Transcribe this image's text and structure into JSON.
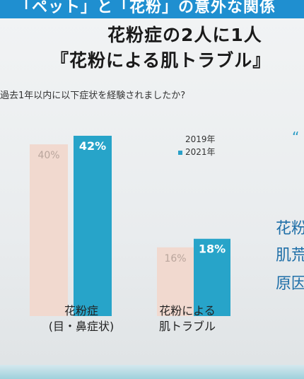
{
  "header": {
    "banner_text": "「ペット」と「花粉」の意外な関係"
  },
  "slide": {
    "title_line1": "花粉症の2人に1人",
    "title_line2": "『花粉による肌トラブル』",
    "question": "過去1年以内に以下症状を経験されましたか?",
    "side_lines": [
      "花粉",
      "肌荒",
      "原因"
    ],
    "quote_mark": "“"
  },
  "chart_data": {
    "type": "bar",
    "categories": [
      "花粉症(目・鼻症状)",
      "花粉による肌トラブル"
    ],
    "category_lines": [
      [
        "花粉症",
        "(目・鼻症状)"
      ],
      [
        "花粉による",
        "肌トラブル"
      ]
    ],
    "series": [
      {
        "name": "2019年",
        "values": [
          40,
          16
        ],
        "labels": [
          "40%",
          "16%"
        ],
        "color": "#f1d9cf"
      },
      {
        "name": "2021年",
        "values": [
          42,
          18
        ],
        "labels": [
          "42%",
          "18%"
        ],
        "color": "#27a4c9"
      }
    ],
    "ylim": [
      0,
      50
    ],
    "legend_position": "top-right",
    "grid": false
  }
}
